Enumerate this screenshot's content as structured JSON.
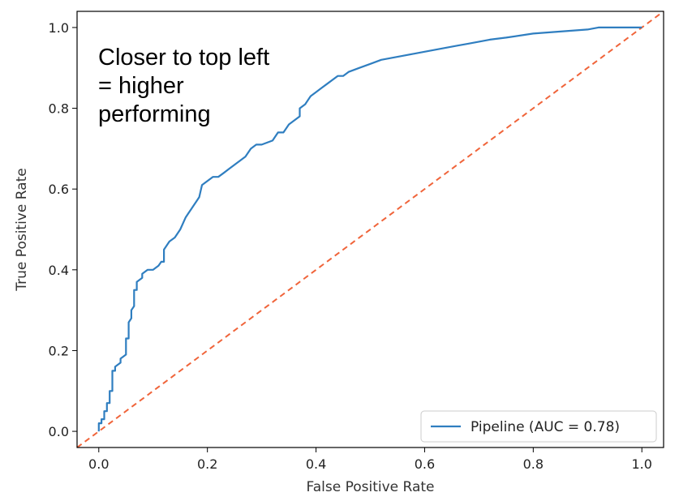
{
  "chart_data": {
    "type": "line",
    "title": "",
    "xlabel": "False Positive Rate",
    "ylabel": "True Positive Rate",
    "xlim": [
      -0.04,
      1.04
    ],
    "ylim": [
      -0.04,
      1.04
    ],
    "xticks": [
      0.0,
      0.2,
      0.4,
      0.6,
      0.8,
      1.0
    ],
    "yticks": [
      0.0,
      0.2,
      0.4,
      0.6,
      0.8,
      1.0
    ],
    "xtick_labels": [
      "0.0",
      "0.2",
      "0.4",
      "0.6",
      "0.8",
      "1.0"
    ],
    "ytick_labels": [
      "0.0",
      "0.2",
      "0.4",
      "0.6",
      "0.8",
      "1.0"
    ],
    "grid": false,
    "legend_position": "bottom-right",
    "annotation": [
      "Closer to top left",
      "= higher",
      "performing"
    ],
    "colors": {
      "roc": "#2f7ec0",
      "chance": "#f0643a"
    },
    "series": [
      {
        "name": "Pipeline (AUC = 0.78)",
        "style": "solid",
        "color": "#2f7ec0",
        "x": [
          0.0,
          0.0,
          0.005,
          0.005,
          0.01,
          0.01,
          0.015,
          0.015,
          0.02,
          0.02,
          0.025,
          0.025,
          0.03,
          0.03,
          0.04,
          0.04,
          0.05,
          0.05,
          0.055,
          0.055,
          0.06,
          0.06,
          0.065,
          0.065,
          0.07,
          0.07,
          0.08,
          0.08,
          0.09,
          0.1,
          0.11,
          0.115,
          0.12,
          0.12,
          0.13,
          0.14,
          0.15,
          0.16,
          0.165,
          0.17,
          0.18,
          0.185,
          0.19,
          0.2,
          0.21,
          0.22,
          0.23,
          0.24,
          0.25,
          0.27,
          0.28,
          0.29,
          0.3,
          0.32,
          0.33,
          0.34,
          0.35,
          0.36,
          0.37,
          0.37,
          0.38,
          0.39,
          0.4,
          0.41,
          0.42,
          0.44,
          0.45,
          0.46,
          0.48,
          0.5,
          0.52,
          0.54,
          0.56,
          0.58,
          0.6,
          0.62,
          0.64,
          0.66,
          0.68,
          0.7,
          0.72,
          0.75,
          0.8,
          0.85,
          0.9,
          0.92,
          1.0
        ],
        "y": [
          0.0,
          0.02,
          0.02,
          0.03,
          0.03,
          0.05,
          0.05,
          0.07,
          0.07,
          0.1,
          0.1,
          0.15,
          0.15,
          0.16,
          0.17,
          0.18,
          0.19,
          0.23,
          0.23,
          0.27,
          0.28,
          0.3,
          0.31,
          0.35,
          0.35,
          0.37,
          0.38,
          0.39,
          0.4,
          0.4,
          0.41,
          0.42,
          0.42,
          0.45,
          0.47,
          0.48,
          0.5,
          0.53,
          0.54,
          0.55,
          0.57,
          0.58,
          0.61,
          0.62,
          0.63,
          0.63,
          0.64,
          0.65,
          0.66,
          0.68,
          0.7,
          0.71,
          0.71,
          0.72,
          0.74,
          0.74,
          0.76,
          0.77,
          0.78,
          0.8,
          0.81,
          0.83,
          0.84,
          0.85,
          0.86,
          0.88,
          0.88,
          0.89,
          0.9,
          0.91,
          0.92,
          0.925,
          0.93,
          0.935,
          0.94,
          0.945,
          0.95,
          0.955,
          0.96,
          0.965,
          0.97,
          0.975,
          0.985,
          0.99,
          0.995,
          1.0,
          1.0
        ]
      },
      {
        "style": "dashed",
        "color": "#f0643a",
        "x": [
          -0.04,
          1.04
        ],
        "y": [
          -0.04,
          1.04
        ]
      }
    ]
  }
}
